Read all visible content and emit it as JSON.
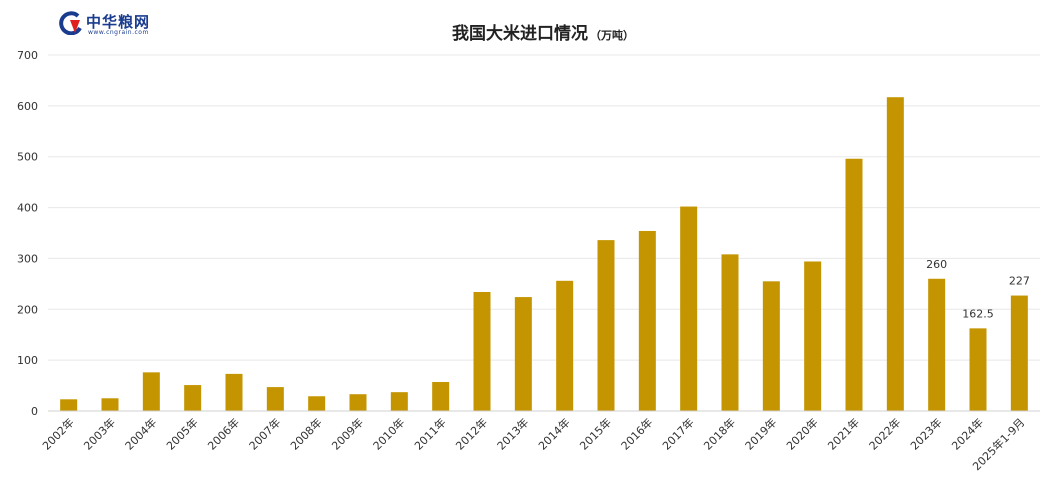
{
  "logo": {
    "name": "中华粮网",
    "url": "www.cngrain.com",
    "icon": "cngrain-logo-icon",
    "colors": {
      "blue": "#1a3c8f",
      "red": "#e02020"
    }
  },
  "chart_data": {
    "type": "bar",
    "title": "我国大米进口情况",
    "subtitle": "（万吨）",
    "xlabel": "",
    "ylabel": "",
    "ylim": [
      0,
      700
    ],
    "yticks": [
      0,
      100,
      200,
      300,
      400,
      500,
      600,
      700
    ],
    "grid": true,
    "legend": "none",
    "bar_color": "#c49500",
    "categories": [
      "2002年",
      "2003年",
      "2004年",
      "2005年",
      "2006年",
      "2007年",
      "2008年",
      "2009年",
      "2010年",
      "2011年",
      "2012年",
      "2013年",
      "2014年",
      "2015年",
      "2016年",
      "2017年",
      "2018年",
      "2019年",
      "2020年",
      "2021年",
      "2022年",
      "2023年",
      "2024年",
      "2025年1-9月"
    ],
    "values": [
      23,
      25,
      76,
      51,
      73,
      47,
      29,
      33,
      37,
      57,
      234,
      224,
      256,
      336,
      354,
      402,
      308,
      255,
      294,
      496,
      617,
      260,
      162.5,
      227
    ],
    "data_labels": [
      {
        "index": 21,
        "text": "260"
      },
      {
        "index": 22,
        "text": "162.5"
      },
      {
        "index": 23,
        "text": "227"
      }
    ]
  }
}
